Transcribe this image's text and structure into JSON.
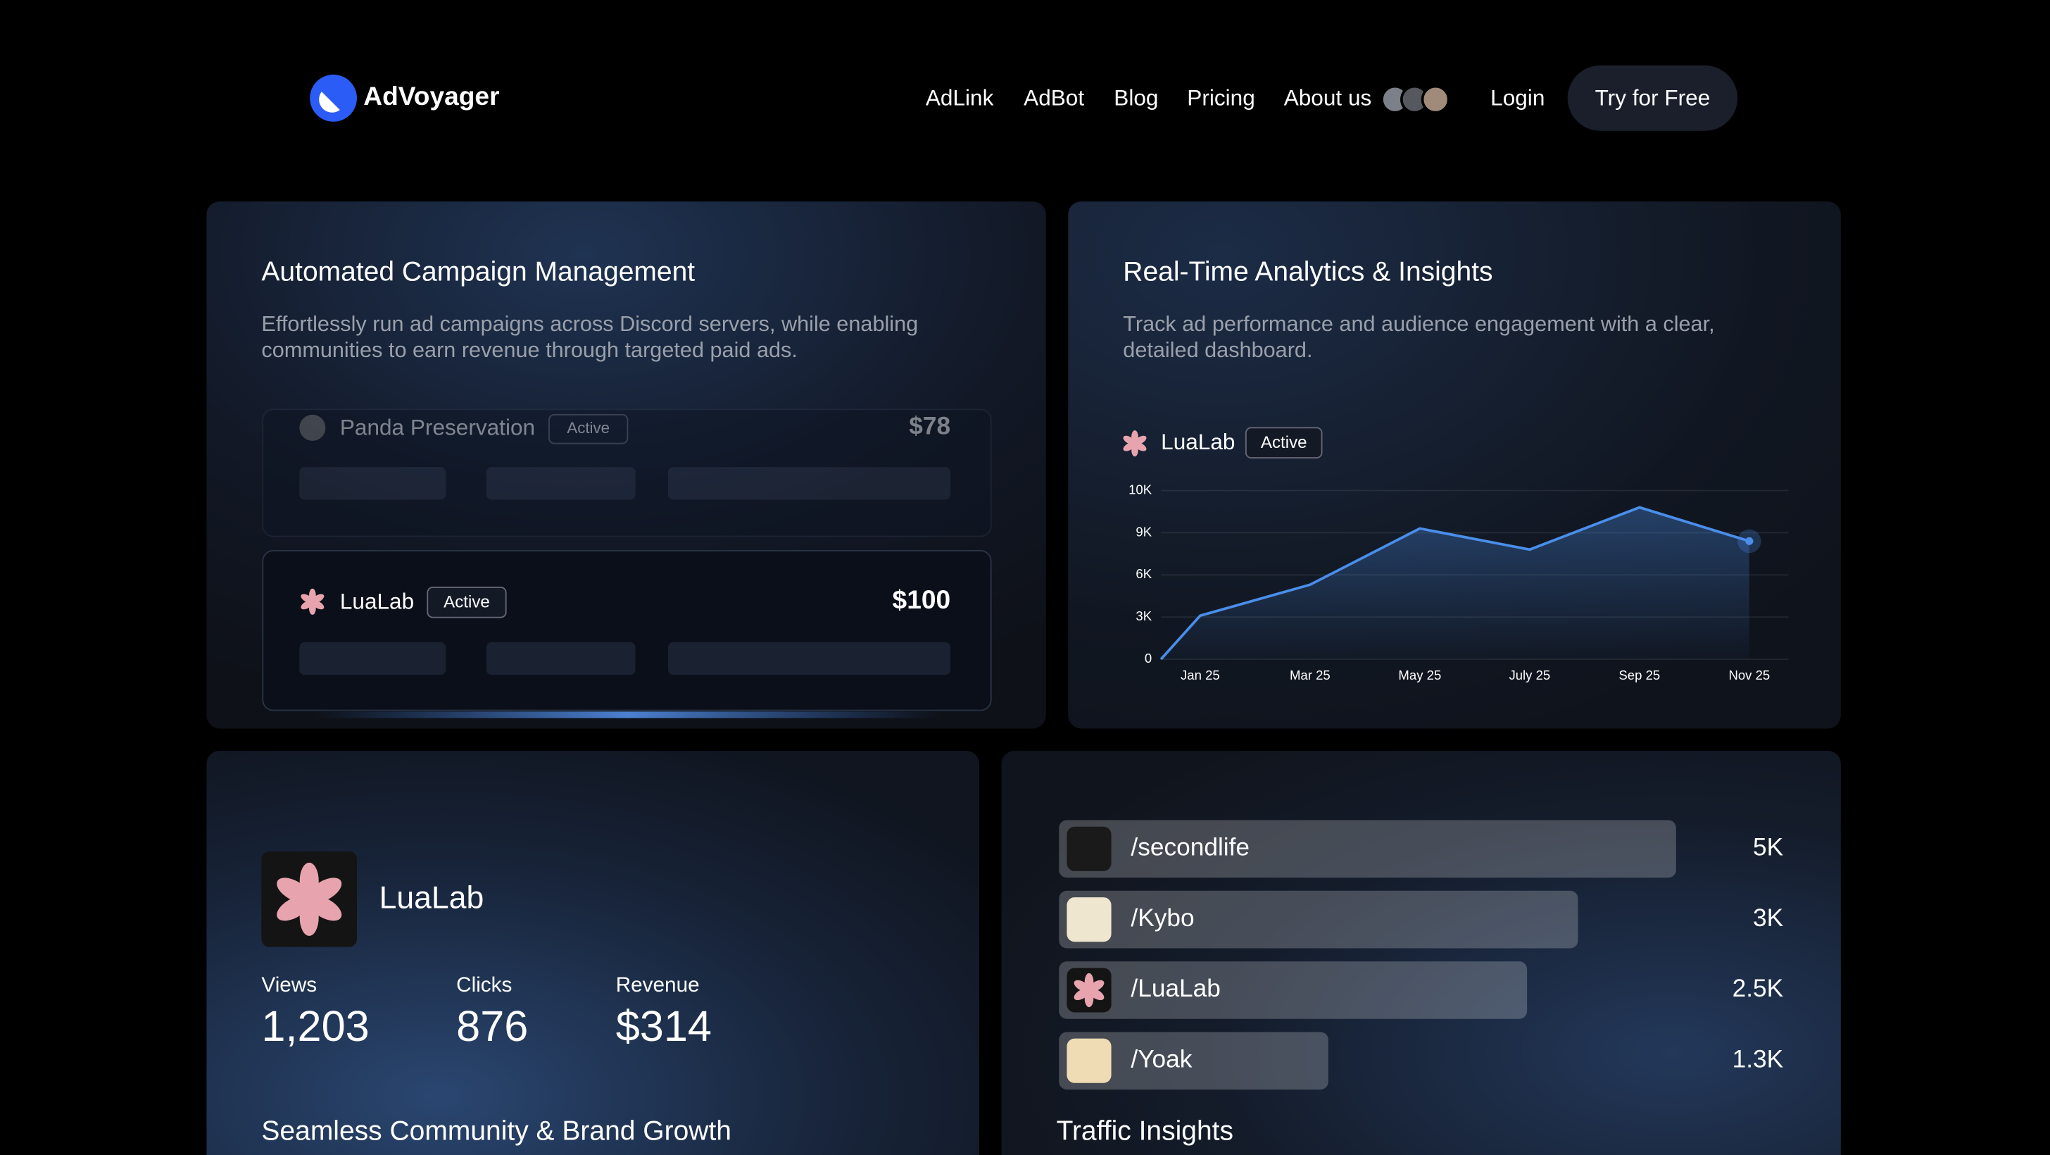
{
  "nav": {
    "brand": "AdVoyager",
    "links": [
      "AdLink",
      "AdBot",
      "Blog",
      "Pricing",
      "About us"
    ],
    "login": "Login",
    "cta": "Try for Free"
  },
  "campaigns": {
    "title": "Automated Campaign Management",
    "description": "Effortlessly run ad campaigns across Discord servers, while enabling communities to earn revenue through targeted paid ads.",
    "items": [
      {
        "name": "Panda Preservation",
        "status": "Active",
        "amount": "$78"
      },
      {
        "name": "LuaLab",
        "status": "Active",
        "amount": "$100"
      }
    ]
  },
  "analytics": {
    "title": "Real-Time Analytics & Insights",
    "description": "Track ad performance and audience engagement with a clear, detailed dashboard.",
    "brand": "LuaLab",
    "status": "Active",
    "chart": {
      "type": "line",
      "categories": [
        null,
        "Jan 25",
        "Mar 25",
        "May 25",
        "July 25",
        "Sep 25",
        "Nov 25"
      ],
      "values": [
        0,
        3100,
        5300,
        9100,
        7800,
        9600,
        8400
      ],
      "color": "#4a8eea",
      "ylim": [
        0,
        10000
      ],
      "yticks": [
        0,
        {
          "value": 3000,
          "label": "3K"
        },
        {
          "value": 6000,
          "label": "6K"
        },
        {
          "value": 9000,
          "label": "9K"
        },
        {
          "value": 10000,
          "label": "10K"
        }
      ],
      "grid": true
    }
  },
  "profile": {
    "name": "LuaLab",
    "stats": [
      {
        "label": "Views",
        "value": "1,203"
      },
      {
        "label": "Clicks",
        "value": "876"
      },
      {
        "label": "Revenue",
        "value": "$314"
      }
    ],
    "title": "Seamless Community & Brand Growth"
  },
  "traffic": {
    "items": [
      {
        "name": "/secondlife",
        "value": "5K"
      },
      {
        "name": "/Kybo",
        "value": "3K"
      },
      {
        "name": "/LuaLab",
        "value": "2.5K"
      },
      {
        "name": "/Yoak",
        "value": "1.3K"
      }
    ],
    "title": "Traffic Insights"
  }
}
